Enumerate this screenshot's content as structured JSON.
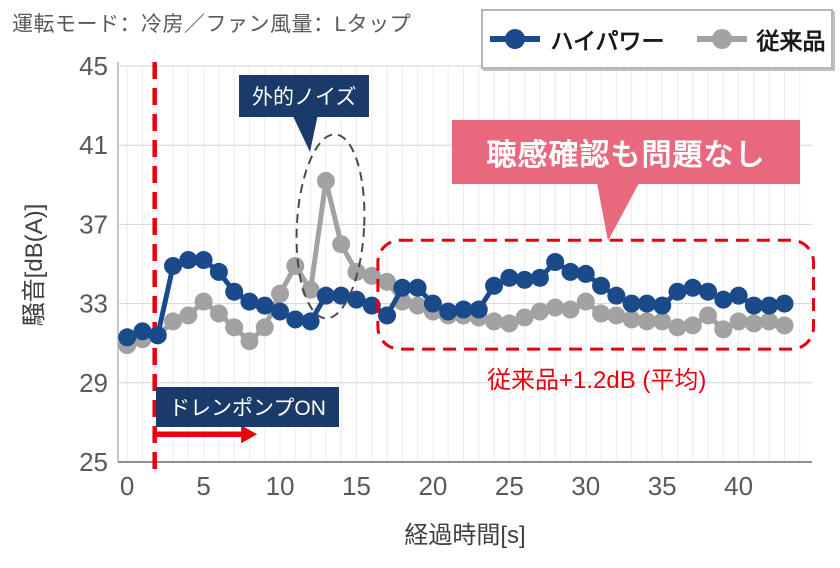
{
  "header": {
    "title": "運転モード：冷房／ファン風量：Lタップ"
  },
  "colors": {
    "highpower_blue": "#1a4a8a",
    "conventional_gray": "#a2a2a2",
    "accent_red": "#e8000f",
    "navy_label_bg": "#1a3b69",
    "pink_banner_bg": "#e8697d"
  },
  "chart_data": {
    "type": "line",
    "x": [
      0,
      1,
      2,
      3,
      4,
      5,
      6,
      7,
      8,
      9,
      10,
      11,
      12,
      13,
      14,
      15,
      16,
      17,
      18,
      19,
      20,
      21,
      22,
      23,
      24,
      25,
      26,
      27,
      28,
      29,
      30,
      31,
      32,
      33,
      34,
      35,
      36,
      37,
      38,
      39,
      40,
      41,
      42,
      43
    ],
    "series": [
      {
        "name": "ハイパワー",
        "color": "#1a4a8a",
        "values": [
          31.3,
          31.6,
          31.4,
          34.9,
          35.2,
          35.2,
          34.6,
          33.6,
          33.1,
          32.9,
          32.6,
          32.2,
          32.1,
          33.4,
          33.4,
          33.2,
          32.9,
          32.4,
          33.8,
          33.8,
          33.0,
          32.6,
          32.7,
          32.7,
          33.9,
          34.3,
          34.2,
          34.3,
          35.1,
          34.6,
          34.5,
          33.9,
          33.4,
          33.0,
          33.0,
          32.9,
          33.6,
          33.8,
          33.6,
          33.2,
          33.4,
          32.9,
          32.9,
          33.0
        ]
      },
      {
        "name": "従来品",
        "color": "#a2a2a2",
        "values": [
          30.9,
          31.2,
          31.4,
          32.1,
          32.4,
          33.1,
          32.5,
          31.8,
          31.1,
          31.8,
          33.5,
          34.9,
          33.7,
          39.2,
          36.0,
          34.6,
          34.4,
          34.1,
          33.1,
          32.9,
          32.6,
          32.4,
          32.4,
          32.3,
          32.1,
          32.0,
          32.3,
          32.6,
          32.8,
          32.7,
          33.1,
          32.5,
          32.4,
          32.2,
          32.1,
          32.1,
          31.8,
          31.9,
          32.4,
          31.7,
          32.1,
          32.0,
          32.1,
          31.9
        ]
      }
    ],
    "title": "",
    "xlabel": "経過時間[s]",
    "ylabel": "騒音[dB(A)]",
    "xlim": [
      -0.6,
      44.8
    ],
    "ylim": [
      25,
      45
    ],
    "xticks": [
      0,
      5,
      10,
      15,
      20,
      25,
      30,
      35,
      40
    ],
    "yticks": [
      25,
      29,
      33,
      37,
      41,
      45
    ],
    "grid": true,
    "legend_position": "top-right",
    "annotations": {
      "external_noise_label": "外的ノイズ",
      "noise_ellipse": {
        "t_center": 13.3,
        "db_center": 36.9,
        "t_radius": 2.2,
        "db_radius": 4.65
      },
      "drain_pump_label": "ドレンポンプON",
      "drain_pump_line_t": 1.8,
      "drain_pump_arrow": {
        "t_from": 1.7,
        "t_to": 8.5,
        "db": 26.4
      },
      "hearing_check_label": "聴感確認も問題なし",
      "hearing_check_box": {
        "t_from": 16.4,
        "t_to": 44.9,
        "db_from": 30.7,
        "db_to": 36.2
      },
      "average_note": "従来品+1.2dB (平均)"
    }
  }
}
